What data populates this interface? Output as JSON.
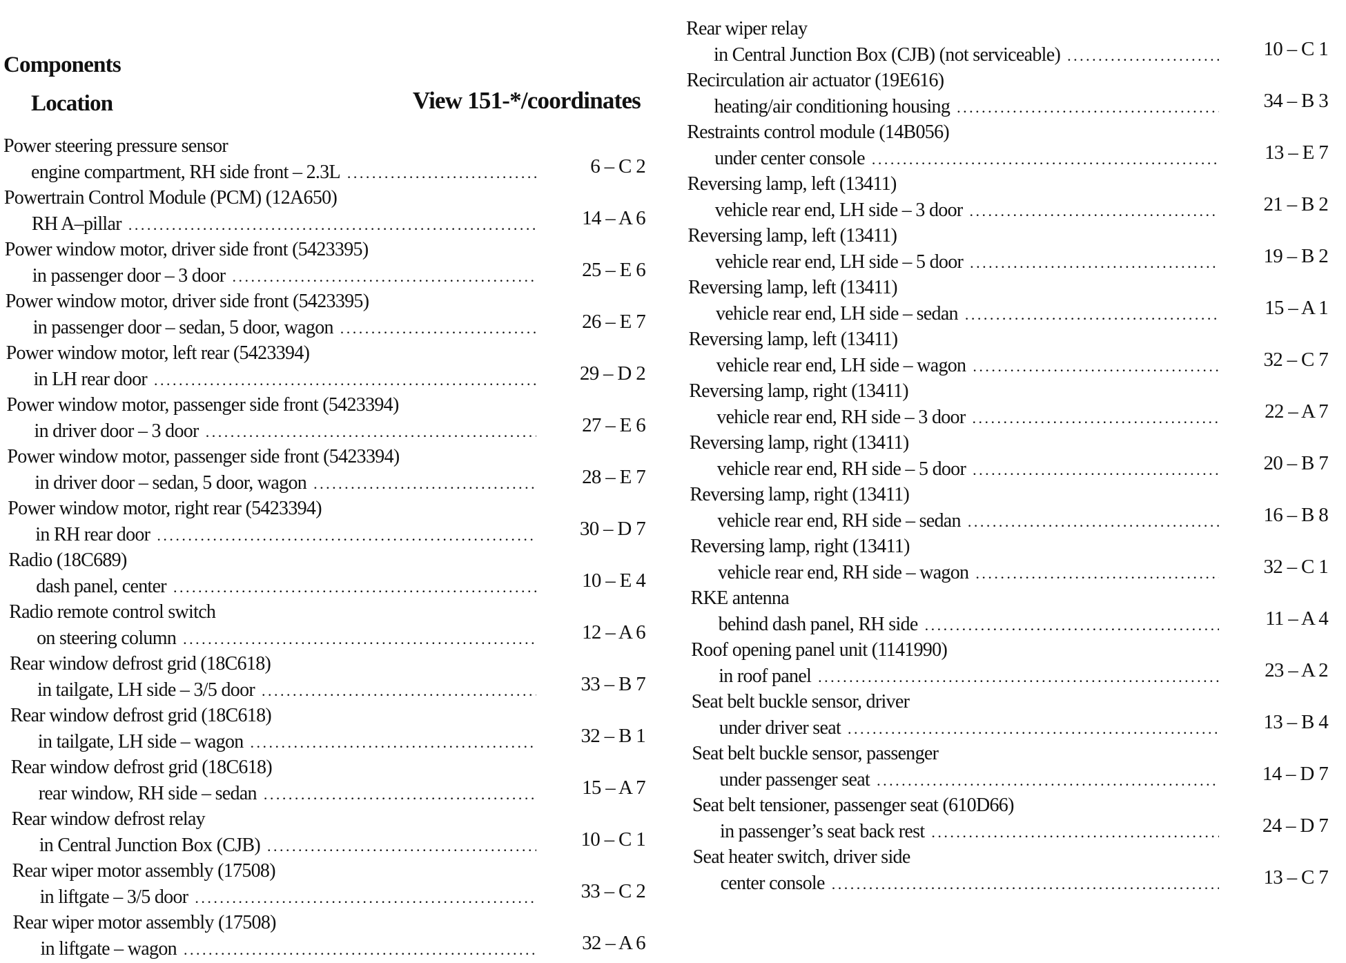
{
  "header": {
    "title": "Components",
    "location_label": "Location",
    "view_label": "View 151-*/coordinates"
  },
  "left_entries": [
    {
      "name": "Power steering pressure sensor",
      "location": "engine compartment, RH side front – 2.3L",
      "code": "6 – C 2"
    },
    {
      "name": "Powertrain Control Module (PCM) (12A650)",
      "location": "RH A–pillar",
      "code": "14 – A 6"
    },
    {
      "name": "Power window motor, driver side front (5423395)",
      "location": "in passenger door – 3 door",
      "code": "25 – E 6"
    },
    {
      "name": "Power window motor, driver side front (5423395)",
      "location": "in passenger door – sedan, 5 door, wagon",
      "code": "26 – E 7"
    },
    {
      "name": "Power window motor, left rear (5423394)",
      "location": "in LH rear door",
      "code": "29 – D 2"
    },
    {
      "name": "Power window motor, passenger side front (5423394)",
      "location": "in driver door – 3 door",
      "code": "27 – E 6"
    },
    {
      "name": "Power window motor, passenger side front (5423394)",
      "location": "in driver door – sedan, 5 door, wagon",
      "code": "28 – E 7"
    },
    {
      "name": "Power window motor, right rear (5423394)",
      "location": "in RH rear door",
      "code": "30 – D 7"
    },
    {
      "name": "Radio (18C689)",
      "location": "dash panel, center",
      "code": "10 – E 4"
    },
    {
      "name": "Radio remote control switch",
      "location": "on steering column",
      "code": "12 – A 6"
    },
    {
      "name": "Rear window defrost grid (18C618)",
      "location": "in tailgate, LH side – 3/5 door",
      "code": "33 – B 7"
    },
    {
      "name": "Rear window defrost grid (18C618)",
      "location": "in tailgate, LH side – wagon",
      "code": "32 – B 1"
    },
    {
      "name": "Rear window defrost grid (18C618)",
      "location": "rear window, RH side – sedan",
      "code": "15 – A 7"
    },
    {
      "name": "Rear window defrost relay",
      "location": "in Central Junction Box (CJB)",
      "code": "10 – C 1"
    },
    {
      "name": "Rear wiper motor assembly (17508)",
      "location": "in liftgate – 3/5 door",
      "code": "33 – C 2"
    },
    {
      "name": "Rear wiper motor assembly (17508)",
      "location": "in liftgate – wagon",
      "code": "32 – A 6"
    }
  ],
  "right_entries": [
    {
      "name": "Rear wiper relay",
      "location": "in Central Junction Box (CJB)  (not serviceable)",
      "code": "10 – C 1"
    },
    {
      "name": "Recirculation air actuator (19E616)",
      "location": "heating/air conditioning housing",
      "code": "34 – B 3"
    },
    {
      "name": "Restraints control module (14B056)",
      "location": "under center console",
      "code": "13 – E 7"
    },
    {
      "name": "Reversing lamp, left (13411)",
      "location": "vehicle rear end, LH side – 3 door",
      "code": "21 – B 2"
    },
    {
      "name": "Reversing lamp, left (13411)",
      "location": "vehicle rear end, LH side – 5 door",
      "code": "19 – B 2"
    },
    {
      "name": "Reversing lamp, left (13411)",
      "location": "vehicle rear end, LH side – sedan",
      "code": "15 – A 1"
    },
    {
      "name": "Reversing lamp, left (13411)",
      "location": "vehicle rear end, LH side – wagon",
      "code": "32 – C 7"
    },
    {
      "name": "Reversing lamp, right (13411)",
      "location": "vehicle rear end, RH side – 3 door",
      "code": "22 – A 7"
    },
    {
      "name": "Reversing lamp, right (13411)",
      "location": "vehicle rear end, RH side – 5 door",
      "code": "20 – B 7"
    },
    {
      "name": "Reversing lamp, right (13411)",
      "location": "vehicle rear end, RH side – sedan",
      "code": "16 – B 8"
    },
    {
      "name": "Reversing lamp, right (13411)",
      "location": "vehicle rear end, RH side – wagon",
      "code": "32 – C 1"
    },
    {
      "name": "RKE antenna",
      "location": "behind dash panel, RH side",
      "code": "11 – A 4"
    },
    {
      "name": "Roof opening panel unit (1141990)",
      "location": "in roof panel",
      "code": "23 – A 2"
    },
    {
      "name": "Seat belt buckle sensor, driver",
      "location": "under driver seat",
      "code": "13 – B 4"
    },
    {
      "name": "Seat belt buckle sensor, passenger",
      "location": "under passenger seat",
      "code": "14 – D 7"
    },
    {
      "name": "Seat belt tensioner, passenger seat (610D66)",
      "location": "in passenger’s seat back rest",
      "code": "24 – D 7"
    },
    {
      "name": "Seat heater switch, driver side",
      "location": "center console",
      "code": "13 – C 7"
    }
  ]
}
